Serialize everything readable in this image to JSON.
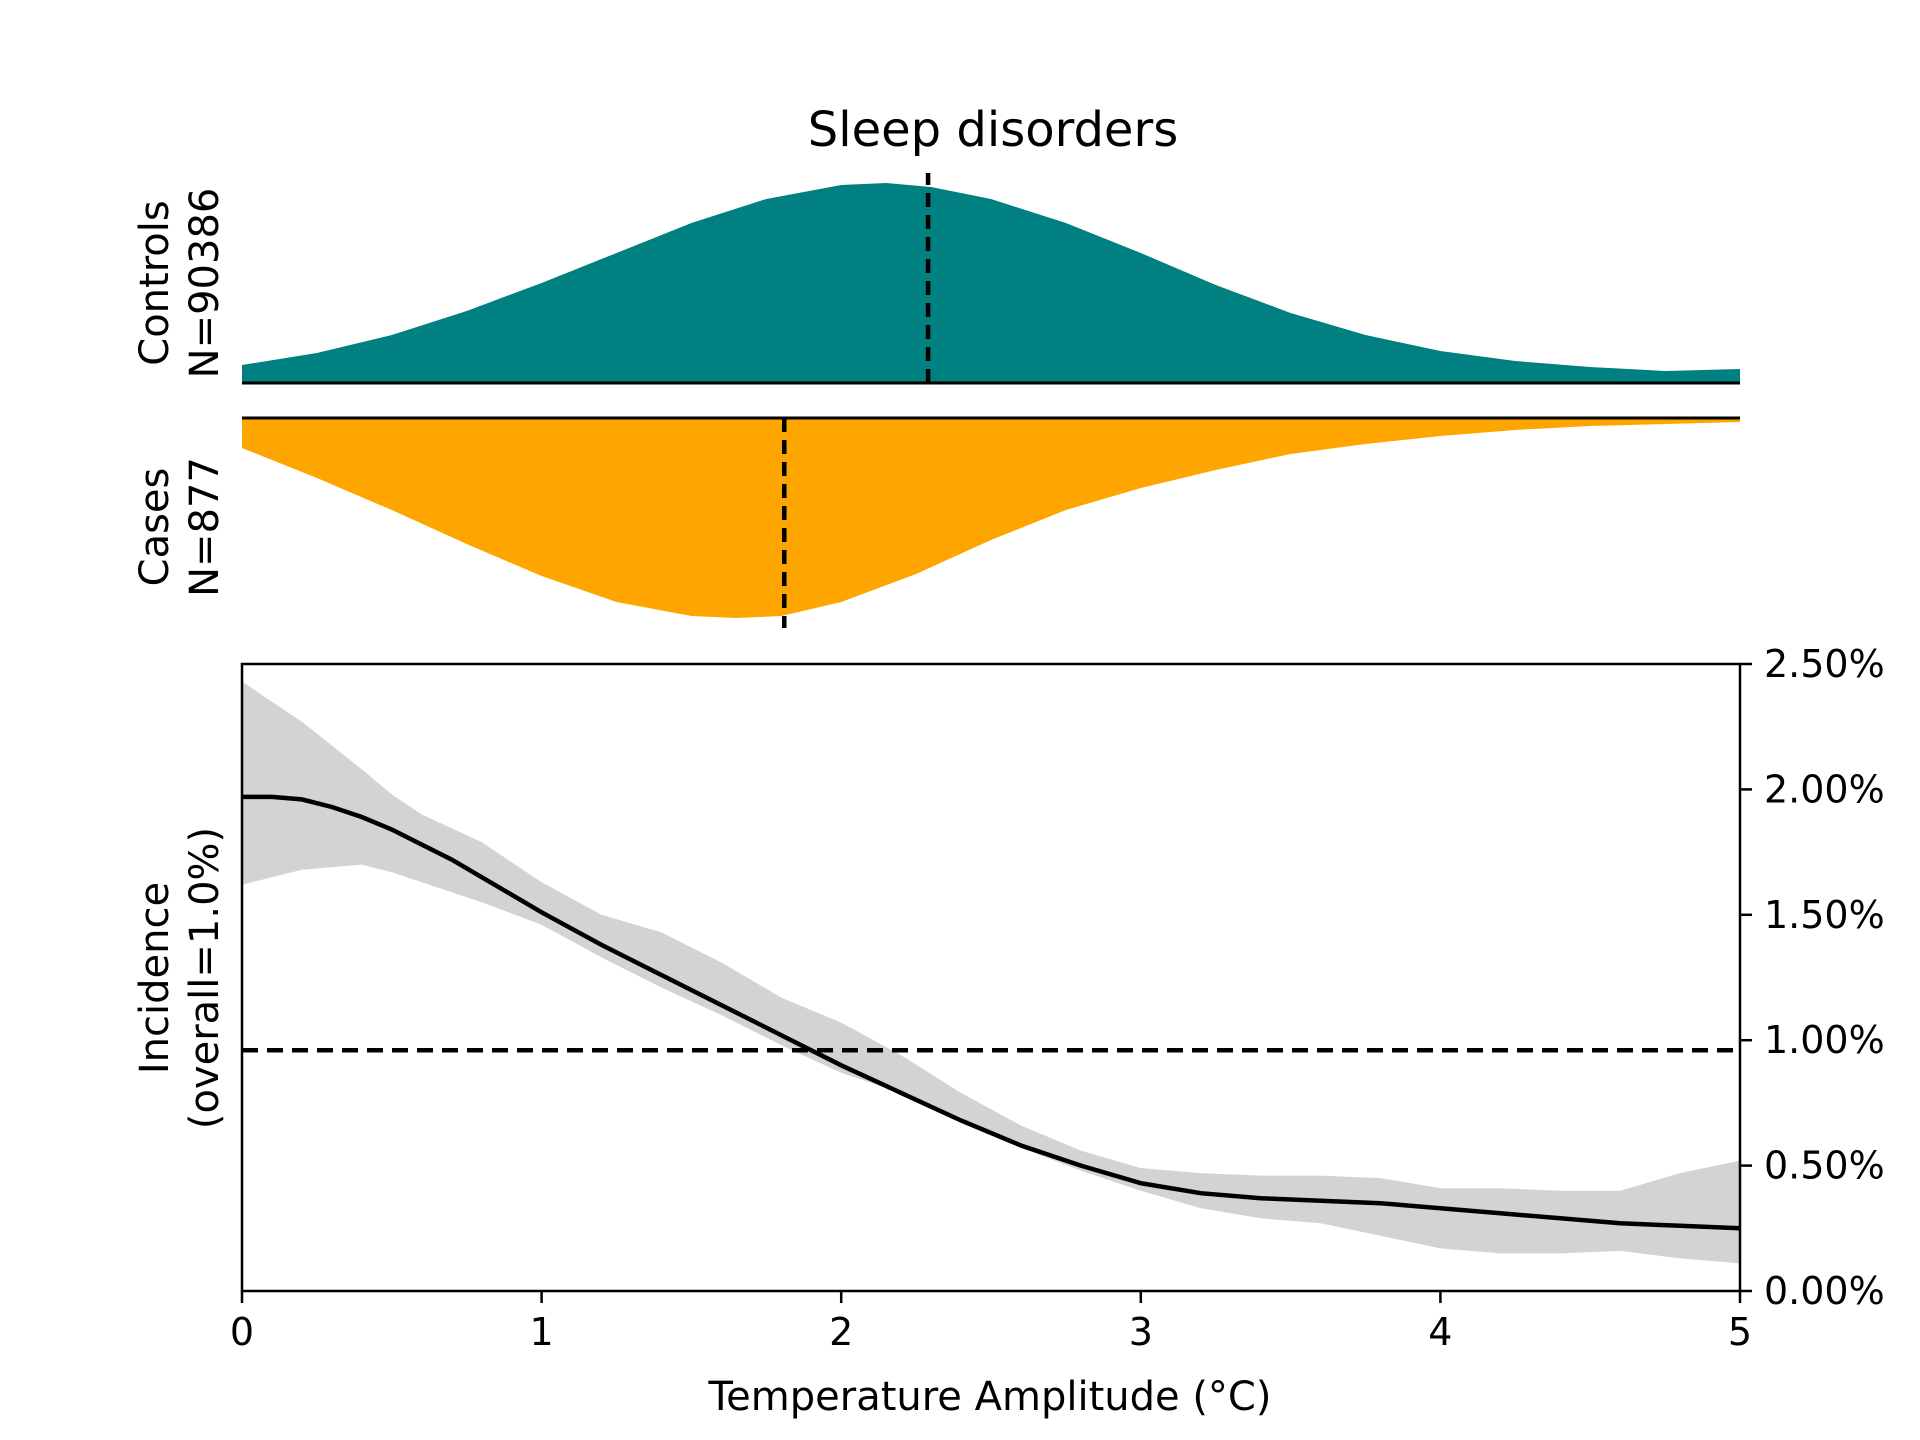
{
  "chart_data": {
    "type": "area",
    "title": "Sleep disorders",
    "xlabel": "Temperature Amplitude (°C)",
    "xlim": [
      0,
      5
    ],
    "x_ticks": [
      "0",
      "1",
      "2",
      "3",
      "4",
      "5"
    ],
    "density_panels": [
      {
        "label": "Controls",
        "n_label": "N=90386",
        "color": "#008080",
        "direction": "up",
        "marker_x": 2.29,
        "x": [
          0,
          0.25,
          0.5,
          0.75,
          1.0,
          1.25,
          1.5,
          1.75,
          2.0,
          2.15,
          2.3,
          2.5,
          2.75,
          3.0,
          3.25,
          3.5,
          3.75,
          4.0,
          4.25,
          4.5,
          4.75,
          5.0
        ],
        "y": [
          0.09,
          0.15,
          0.24,
          0.36,
          0.5,
          0.65,
          0.8,
          0.92,
          0.99,
          1.0,
          0.98,
          0.92,
          0.8,
          0.65,
          0.49,
          0.35,
          0.24,
          0.16,
          0.11,
          0.08,
          0.06,
          0.07
        ]
      },
      {
        "label": "Cases",
        "n_label": "N=877",
        "color": "#FFA500",
        "direction": "down",
        "marker_x": 1.81,
        "x": [
          0,
          0.25,
          0.5,
          0.75,
          1.0,
          1.25,
          1.5,
          1.65,
          1.8,
          2.0,
          2.25,
          2.5,
          2.75,
          3.0,
          3.25,
          3.5,
          3.75,
          4.0,
          4.25,
          4.5,
          4.75,
          5.0
        ],
        "y": [
          0.15,
          0.3,
          0.46,
          0.63,
          0.79,
          0.92,
          0.99,
          1.0,
          0.99,
          0.92,
          0.78,
          0.61,
          0.46,
          0.35,
          0.26,
          0.18,
          0.13,
          0.09,
          0.06,
          0.04,
          0.03,
          0.02
        ]
      }
    ],
    "incidence_panel": {
      "ylabel": "Incidence\n(overall=1.0%)",
      "ylim": [
        0,
        2.5
      ],
      "y_ticks": [
        "0.00%",
        "0.50%",
        "1.00%",
        "1.50%",
        "2.00%",
        "2.50%"
      ],
      "y_tick_values": [
        0,
        0.5,
        1.0,
        1.5,
        2.0,
        2.5
      ],
      "overall_line": 0.96,
      "series": [
        {
          "name": "",
          "x": [
            0,
            0.1,
            0.2,
            0.3,
            0.4,
            0.5,
            0.6,
            0.7,
            0.8,
            0.9,
            1.0,
            1.2,
            1.4,
            1.6,
            1.8,
            2.0,
            2.2,
            2.4,
            2.6,
            2.8,
            3.0,
            3.2,
            3.4,
            3.6,
            3.8,
            4.0,
            4.2,
            4.4,
            4.6,
            4.8,
            5.0
          ],
          "y": [
            1.97,
            1.97,
            1.96,
            1.93,
            1.89,
            1.84,
            1.78,
            1.72,
            1.65,
            1.58,
            1.51,
            1.38,
            1.26,
            1.14,
            1.02,
            0.9,
            0.79,
            0.68,
            0.58,
            0.5,
            0.43,
            0.39,
            0.37,
            0.36,
            0.35,
            0.33,
            0.31,
            0.29,
            0.27,
            0.26,
            0.25
          ]
        }
      ],
      "band": {
        "x": [
          0,
          0.2,
          0.4,
          0.5,
          0.6,
          0.8,
          1.0,
          1.2,
          1.4,
          1.6,
          1.8,
          2.0,
          2.2,
          2.4,
          2.6,
          2.8,
          3.0,
          3.2,
          3.4,
          3.6,
          3.8,
          4.0,
          4.2,
          4.4,
          4.6,
          4.8,
          5.0
        ],
        "upper": [
          2.43,
          2.27,
          2.08,
          1.98,
          1.9,
          1.79,
          1.63,
          1.5,
          1.43,
          1.31,
          1.17,
          1.07,
          0.94,
          0.79,
          0.66,
          0.56,
          0.49,
          0.47,
          0.46,
          0.46,
          0.45,
          0.41,
          0.41,
          0.4,
          0.4,
          0.47,
          0.52
        ],
        "lower": [
          1.62,
          1.68,
          1.7,
          1.67,
          1.63,
          1.55,
          1.46,
          1.33,
          1.21,
          1.1,
          0.98,
          0.87,
          0.79,
          0.68,
          0.57,
          0.48,
          0.4,
          0.33,
          0.29,
          0.27,
          0.22,
          0.17,
          0.15,
          0.15,
          0.16,
          0.13,
          0.11
        ]
      }
    }
  }
}
